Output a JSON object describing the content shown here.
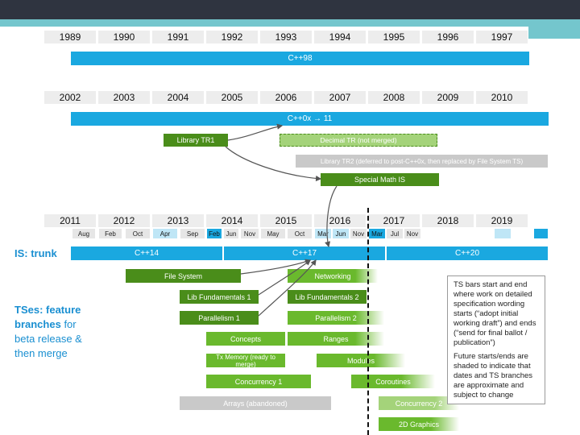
{
  "timeline1": {
    "years": [
      "1989",
      "1990",
      "1991",
      "1992",
      "1993",
      "1994",
      "1995",
      "1996",
      "1997"
    ],
    "bar": "C++98"
  },
  "timeline2": {
    "years": [
      "2002",
      "2003",
      "2004",
      "2005",
      "2006",
      "2007",
      "2008",
      "2009",
      "2010"
    ],
    "bar": "C++0x → 11"
  },
  "tr": {
    "library_tr1": "Library TR1",
    "decimal_tr": "Decimal TR (not merged)",
    "library_tr2": "Library TR2 (deferred to post-C++0x, then replaced by File System TS)",
    "special_math": "Special Math IS"
  },
  "timeline3": {
    "years": [
      "2011",
      "2012",
      "2013",
      "2014",
      "2015",
      "2016",
      "2017",
      "2018",
      "2019"
    ],
    "months": [
      "Aug",
      "Feb",
      "Oct",
      "Apr",
      "Sep",
      "Feb",
      "Jun",
      "Nov",
      "May",
      "Oct",
      "Mar",
      "Jun",
      "Nov",
      "Mar",
      "Jul",
      "Nov"
    ]
  },
  "is_label": "IS: trunk",
  "is_bars": [
    "C++14",
    "C++17",
    "C++20"
  ],
  "tses_label": {
    "bold": "TSes: feature branches",
    "rest": "for beta release & then merge"
  },
  "ts_bars": {
    "file_system": "File System",
    "networking": "Networking",
    "lib_fund1": "Lib Fundamentals 1",
    "lib_fund2": "Lib Fundamentals 2",
    "parallelism1": "Parallelism 1",
    "parallelism2": "Parallelism 2",
    "concepts": "Concepts",
    "ranges": "Ranges",
    "tx_memory": "Tx Memory (ready to merge)",
    "modules": "Modules",
    "concurrency1": "Concurrency 1",
    "coroutines": "Coroutines",
    "arrays": "Arrays (abandoned)",
    "concurrency2": "Concurrency 2",
    "graphics2d": "2D Graphics"
  },
  "notes": {
    "p1": "TS bars start and end where work on detailed specification wording starts (“adopt initial working draft”) and ends (“send for final ballot / publication”)",
    "p2": "Future starts/ends are shaded to indicate that dates and TS branches are approximate and subject to change"
  },
  "colors": {
    "header_dark": "#2f3440",
    "header_teal": "#74c6cd",
    "cpp_blue": "#1aa8e0",
    "ts_green": "#4a8d1a",
    "ts_light_green": "#6ab92d",
    "gray": "#c9c9c9"
  }
}
